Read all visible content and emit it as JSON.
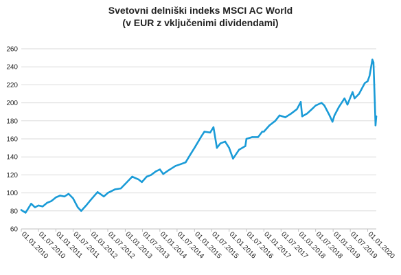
{
  "chart_data": {
    "type": "line",
    "title": "Svetovni delniški indeks MSCI AC World",
    "subtitle": "(v EUR z vključenimi dividendami)",
    "xlabel": "",
    "ylabel": "",
    "ylim": [
      60,
      260
    ],
    "yticks": [
      60,
      80,
      100,
      120,
      140,
      160,
      180,
      200,
      220,
      240,
      260
    ],
    "xlim": [
      "2010-01-01",
      "2020-03-31"
    ],
    "xticks": [
      "01.01.2010",
      "01.07.2010",
      "01.01.2011",
      "01.07.2011",
      "01.01.2012",
      "01.07.2012",
      "01.01.2013",
      "01.07.2013",
      "01.01.2014",
      "01.07.2014",
      "01.01.2015",
      "01.07.2015",
      "01.01.2016",
      "01.07.2016",
      "01.01.2017",
      "01.07.2017",
      "01.01.2018",
      "01.07.2018",
      "01.01.2019",
      "01.07.2019",
      "01.01.2020"
    ],
    "grid": {
      "horizontal": true,
      "vertical": false
    },
    "legend": "none",
    "line_color": "#1a9bd7",
    "series": [
      {
        "x": [
          "2010-01-01",
          "2010-02-15",
          "2010-04-15",
          "2010-05-25",
          "2010-07-01",
          "2010-08-15",
          "2010-09-30",
          "2010-11-15",
          "2011-01-01",
          "2011-02-15",
          "2011-04-01",
          "2011-05-15",
          "2011-07-01",
          "2011-08-20",
          "2011-09-25",
          "2011-11-15",
          "2012-01-01",
          "2012-03-15",
          "2012-05-20",
          "2012-07-01",
          "2012-09-15",
          "2012-11-15",
          "2013-01-01",
          "2013-03-15",
          "2013-05-20",
          "2013-06-25",
          "2013-08-15",
          "2013-10-01",
          "2013-11-20",
          "2014-01-01",
          "2014-02-05",
          "2014-04-01",
          "2014-06-15",
          "2014-08-10",
          "2014-09-30",
          "2014-11-20",
          "2015-01-01",
          "2015-03-15",
          "2015-04-15",
          "2015-06-15",
          "2015-07-20",
          "2015-08-25",
          "2015-10-01",
          "2015-11-20",
          "2016-01-01",
          "2016-02-11",
          "2016-04-15",
          "2016-06-20",
          "2016-07-01",
          "2016-09-01",
          "2016-11-01",
          "2016-12-15",
          "2017-01-01",
          "2017-03-01",
          "2017-05-01",
          "2017-06-15",
          "2017-08-15",
          "2017-10-15",
          "2017-12-15",
          "2018-01-25",
          "2018-02-09",
          "2018-04-01",
          "2018-06-01",
          "2018-07-01",
          "2018-09-01",
          "2018-10-01",
          "2018-11-20",
          "2018-12-25",
          "2019-01-15",
          "2019-03-01",
          "2019-05-01",
          "2019-06-01",
          "2019-07-25",
          "2019-08-15",
          "2019-10-01",
          "2019-12-01",
          "2019-12-31",
          "2020-01-20",
          "2020-02-19",
          "2020-03-01",
          "2020-03-16",
          "2020-03-23",
          "2020-03-31"
        ],
        "y": [
          81,
          78,
          88,
          84,
          86,
          85,
          89,
          91,
          95,
          97,
          96,
          99,
          94,
          84,
          80,
          86,
          92,
          101,
          96,
          100,
          104,
          105,
          110,
          118,
          115,
          112,
          118,
          120,
          124,
          126,
          121,
          125,
          130,
          132,
          134,
          143,
          150,
          163,
          168,
          167,
          173,
          150,
          155,
          157,
          150,
          138,
          148,
          152,
          160,
          162,
          162,
          168,
          168,
          175,
          180,
          186,
          184,
          188,
          193,
          201,
          185,
          188,
          194,
          197,
          200,
          197,
          187,
          179,
          186,
          195,
          205,
          198,
          212,
          205,
          210,
          222,
          224,
          230,
          248,
          245,
          200,
          175,
          185
        ]
      }
    ]
  }
}
